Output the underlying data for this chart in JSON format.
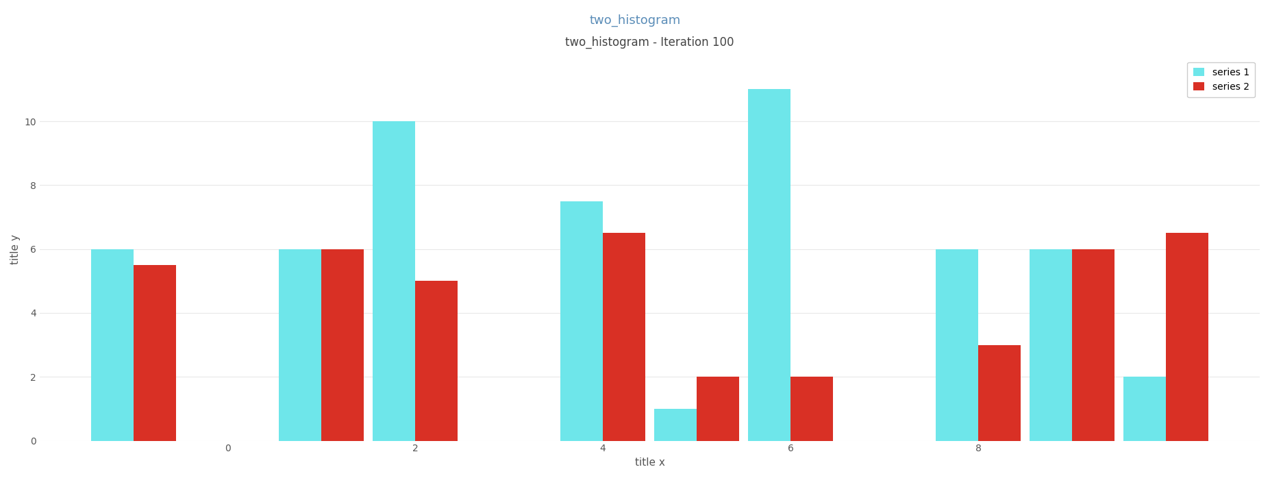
{
  "title": "two_histogram",
  "subtitle": "two_histogram - Iteration 100",
  "xlabel": "title x",
  "ylabel": "title y",
  "series1_label": "series 1",
  "series2_label": "series 2",
  "series1_color": "#6ee6ea",
  "series2_color": "#d93025",
  "bar_width": 0.45,
  "series1_centers": [
    -1.0,
    1.0,
    2.0,
    4.0,
    5.0,
    6.0,
    8.0,
    9.0,
    10.0
  ],
  "series1_heights": [
    6.0,
    6.0,
    10.0,
    7.5,
    1.0,
    11.0,
    6.0,
    6.0,
    2.0
  ],
  "series2_centers": [
    -1.0,
    1.0,
    2.0,
    4.0,
    5.0,
    6.0,
    8.0,
    9.0,
    10.0
  ],
  "series2_heights": [
    5.5,
    6.0,
    5.0,
    6.5,
    2.0,
    2.0,
    3.0,
    6.0,
    6.5
  ],
  "xlim": [
    -2,
    11
  ],
  "ylim": [
    0,
    12
  ],
  "yticks": [
    0,
    2,
    4,
    6,
    8,
    10
  ],
  "xticks": [
    0,
    2,
    4,
    6,
    8
  ],
  "background_color": "#ffffff",
  "grid_color": "#e8e8e8",
  "title_color": "#5b8db8",
  "subtitle_color": "#444444",
  "tick_color": "#555555"
}
